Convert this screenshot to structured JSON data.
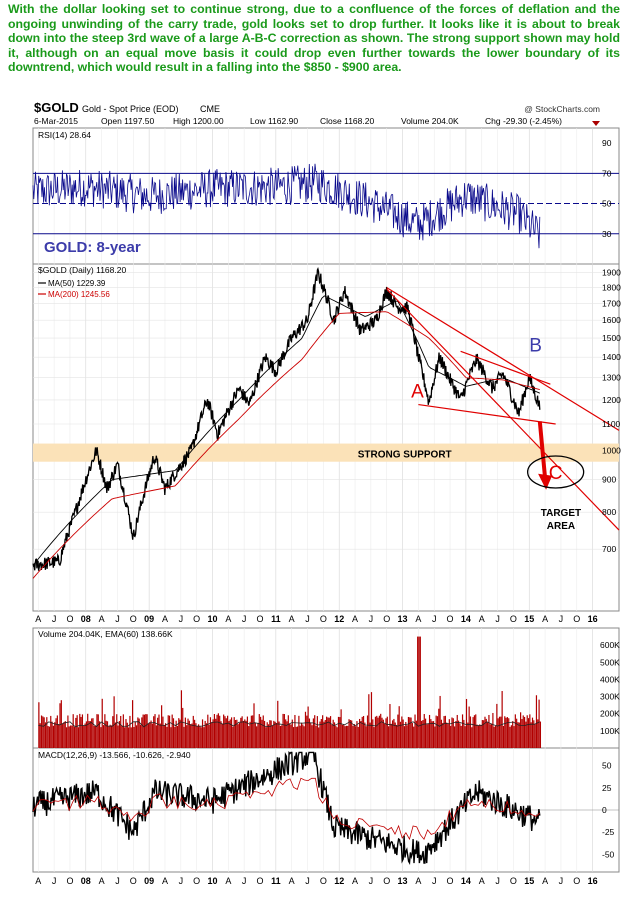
{
  "commentary": "With the dollar looking set to continue strong, due to a confluence of the forces of deflation and the ongoing unwinding of the carry trade, gold looks set to drop further. It looks like it is about to break down into the steep 3rd wave of a large A-B-C correction as shown. The strong support shown may hold it, although on an equal move basis it could drop even further towards the lower boundary of its downtrend, which would result in a falling into the $850 - $900 area.",
  "header": {
    "symbol": "$GOLD",
    "description": "Gold - Spot Price (EOD)",
    "exchange": "CME",
    "watermark": "@ StockCharts.com",
    "date": "6-Mar-2015",
    "open": "Open 1197.50",
    "high": "High 1200.00",
    "low": "Low 1162.90",
    "close": "Close 1168.20",
    "volume": "Volume 204.0K",
    "change": "Chg -29.30 (-2.45%)"
  },
  "colors": {
    "price": "#000000",
    "ma50": "#000000",
    "ma200": "#cc0000",
    "indicator_line": "#0a0a8c",
    "support_band": "#fbe2b8",
    "annotation_red": "#e00000",
    "annotation_blue": "#3c3caa",
    "volume_bars": "#b20000"
  },
  "chart_data": [
    {
      "type": "line",
      "title": "RSI(14) 28.64",
      "x_range": [
        "2007-03",
        "2016-06"
      ],
      "ylim": [
        10,
        100
      ],
      "ticks": [
        30,
        50,
        70,
        90
      ],
      "reference_lines": [
        30,
        50,
        70
      ],
      "series": [
        {
          "name": "RSI(14)",
          "x": [
            "2007-03",
            "2008-01",
            "2009-01",
            "2010-01",
            "2011-01",
            "2011-09",
            "2012-06",
            "2013-04",
            "2014-01",
            "2014-11",
            "2015-03"
          ],
          "values": [
            58,
            61,
            55,
            60,
            61,
            64,
            52,
            36,
            55,
            43,
            28.64
          ]
        }
      ]
    },
    {
      "type": "line",
      "label": "GOLD: 8-year",
      "legend": [
        "$GOLD (Daily) 1168.20",
        "MA(50) 1229.39",
        "MA(200) 1245.56"
      ],
      "x_range": [
        "2007-03",
        "2016-06"
      ],
      "ylim": [
        560,
        1960
      ],
      "log_scale": true,
      "y_ticks": [
        700,
        800,
        900,
        1000,
        1100,
        1200,
        1300,
        1400,
        1500,
        1600,
        1700,
        1800,
        1900
      ],
      "x_ticks": [
        "A",
        "J",
        "O",
        "08",
        "A",
        "J",
        "O",
        "09",
        "A",
        "J",
        "O",
        "10",
        "A",
        "J",
        "O",
        "11",
        "A",
        "J",
        "O",
        "12",
        "A",
        "J",
        "O",
        "13",
        "A",
        "J",
        "O",
        "14",
        "A",
        "J",
        "O",
        "15",
        "A",
        "J",
        "O",
        "16"
      ],
      "series": [
        {
          "name": "$GOLD",
          "x": [
            "2007-03",
            "2007-08",
            "2007-11",
            "2008-03",
            "2008-05",
            "2008-07",
            "2008-10",
            "2009-02",
            "2009-04",
            "2009-09",
            "2009-12",
            "2010-02",
            "2010-06",
            "2010-08",
            "2010-11",
            "2011-01",
            "2011-04",
            "2011-07",
            "2011-09",
            "2011-12",
            "2012-02",
            "2012-05",
            "2012-08",
            "2012-10",
            "2012-12",
            "2013-02",
            "2013-04",
            "2013-06",
            "2013-08",
            "2013-10",
            "2013-12",
            "2014-03",
            "2014-06",
            "2014-08",
            "2014-11",
            "2015-01",
            "2015-03"
          ],
          "values": [
            660,
            670,
            800,
            1000,
            870,
            950,
            730,
            980,
            870,
            1000,
            1200,
            1060,
            1250,
            1180,
            1400,
            1330,
            1500,
            1600,
            1900,
            1600,
            1780,
            1540,
            1600,
            1780,
            1680,
            1670,
            1400,
            1190,
            1400,
            1290,
            1200,
            1390,
            1250,
            1320,
            1140,
            1300,
            1168.2
          ]
        },
        {
          "name": "MA(50)",
          "x": [
            "2007-03",
            "2008-06",
            "2009-06",
            "2010-06",
            "2011-06",
            "2011-10",
            "2012-06",
            "2012-12",
            "2013-06",
            "2014-01",
            "2014-08",
            "2015-03"
          ],
          "values": [
            660,
            900,
            930,
            1200,
            1500,
            1750,
            1620,
            1720,
            1350,
            1260,
            1300,
            1229.39
          ]
        },
        {
          "name": "MA(200)",
          "x": [
            "2007-03",
            "2008-06",
            "2009-06",
            "2010-06",
            "2011-06",
            "2012-01",
            "2012-10",
            "2013-06",
            "2014-01",
            "2014-08",
            "2015-03"
          ],
          "values": [
            630,
            840,
            880,
            1120,
            1390,
            1640,
            1650,
            1500,
            1300,
            1290,
            1245.56
          ]
        }
      ],
      "annotations": [
        "STRONG SUPPORT",
        "A",
        "B",
        "C",
        "TARGET AREA"
      ],
      "support_zone": [
        960,
        1025
      ]
    },
    {
      "type": "bar",
      "title": "Volume 204.04K, EMA(60) 138.66K",
      "ylim": [
        0,
        700000
      ],
      "ticks": [
        "100K",
        "200K",
        "300K",
        "400K",
        "500K",
        "600K"
      ]
    },
    {
      "type": "line",
      "title": "MACD(12,26,9) -13.566, -10.626, -2.940",
      "ylim": [
        -70,
        70
      ],
      "ticks": [
        -50,
        -25,
        0,
        25,
        50
      ],
      "series": [
        {
          "name": "MACD(12,26,9)",
          "x": [
            "2007-03",
            "2008-03",
            "2008-10",
            "2009-02",
            "2010-01",
            "2011-08",
            "2011-12",
            "2013-05",
            "2014-03",
            "2015-03"
          ],
          "values": [
            5,
            20,
            -25,
            20,
            10,
            65,
            -20,
            -50,
            20,
            -13.566
          ]
        }
      ]
    }
  ]
}
